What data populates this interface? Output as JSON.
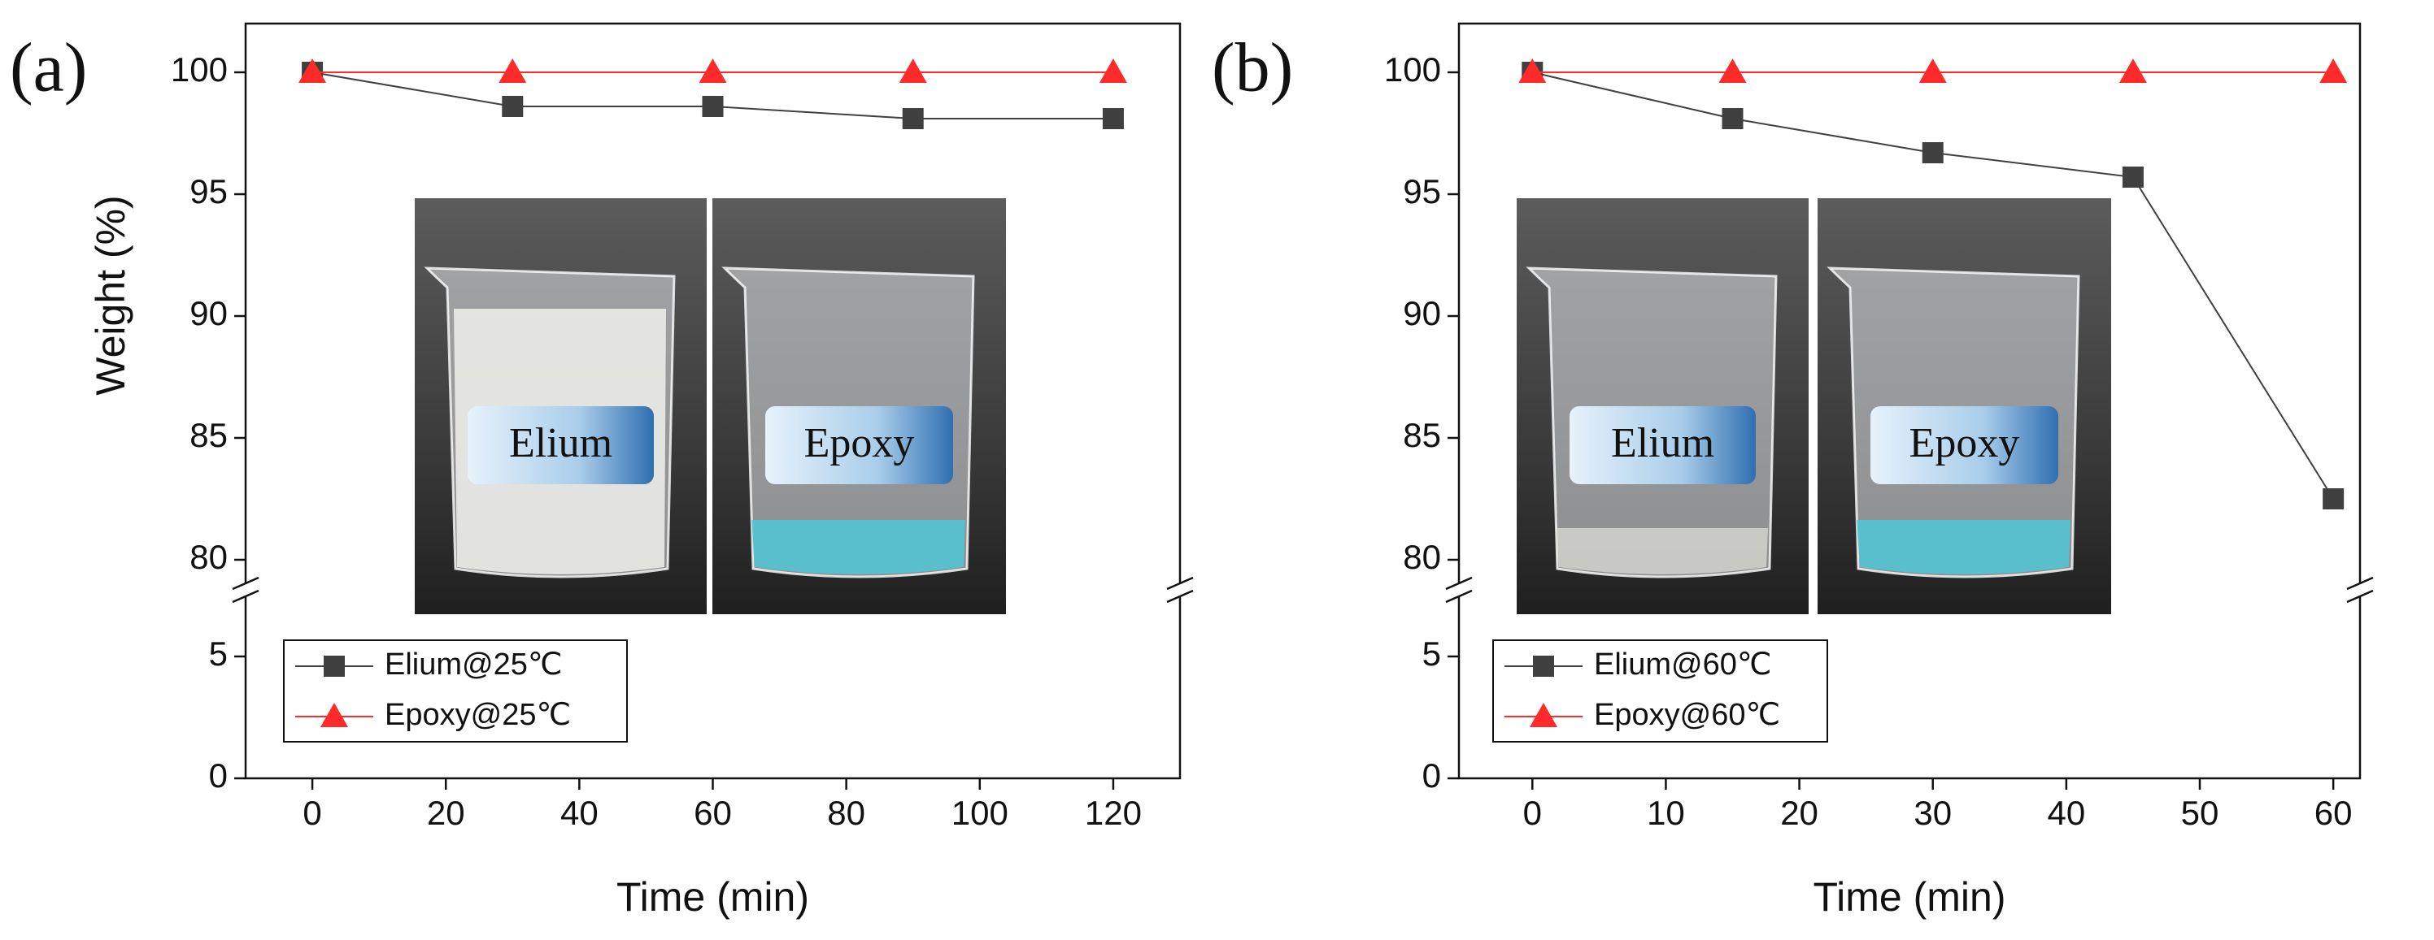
{
  "chart_data": [
    {
      "type": "line",
      "panel_label": "(a)",
      "x_label": "Time (min)",
      "y_label": "Weight (%)",
      "x": [
        0,
        30,
        60,
        90,
        120
      ],
      "series": [
        {
          "name": "Elium@25℃",
          "color": "#404040",
          "marker": "square",
          "values": [
            100,
            98.6,
            98.6,
            98.1,
            98.1
          ]
        },
        {
          "name": "Epoxy@25℃",
          "color": "#ff2a2a",
          "marker": "triangle",
          "values": [
            100,
            100,
            100,
            100,
            100
          ]
        }
      ],
      "xlim": [
        -10,
        130
      ],
      "xticks": [
        0,
        20,
        40,
        60,
        80,
        100,
        120
      ],
      "ylim": [
        0,
        102
      ],
      "ybreak": [
        7.5,
        79
      ],
      "yticks": [
        0,
        5,
        80,
        85,
        90,
        95,
        100
      ],
      "legend": "lower left",
      "photo_labels": [
        "Elium",
        "Epoxy"
      ]
    },
    {
      "type": "line",
      "panel_label": "(b)",
      "x_label": "Time (min)",
      "x": [
        0,
        15,
        30,
        45,
        60
      ],
      "series": [
        {
          "name": "Elium@60℃",
          "color": "#404040",
          "marker": "square",
          "values": [
            100,
            98.1,
            96.7,
            95.7,
            82.5
          ]
        },
        {
          "name": "Epoxy@60℃",
          "color": "#ff2a2a",
          "marker": "triangle",
          "values": [
            100,
            100,
            100,
            100,
            100
          ]
        }
      ],
      "xlim": [
        -5.5,
        62
      ],
      "xticks": [
        0,
        10,
        20,
        30,
        40,
        50,
        60
      ],
      "ylim": [
        0,
        102
      ],
      "ybreak": [
        7.5,
        79
      ],
      "yticks": [
        0,
        5,
        80,
        85,
        90,
        95,
        100
      ],
      "legend": "lower left",
      "photo_labels": [
        "Elium",
        "Epoxy"
      ]
    }
  ]
}
